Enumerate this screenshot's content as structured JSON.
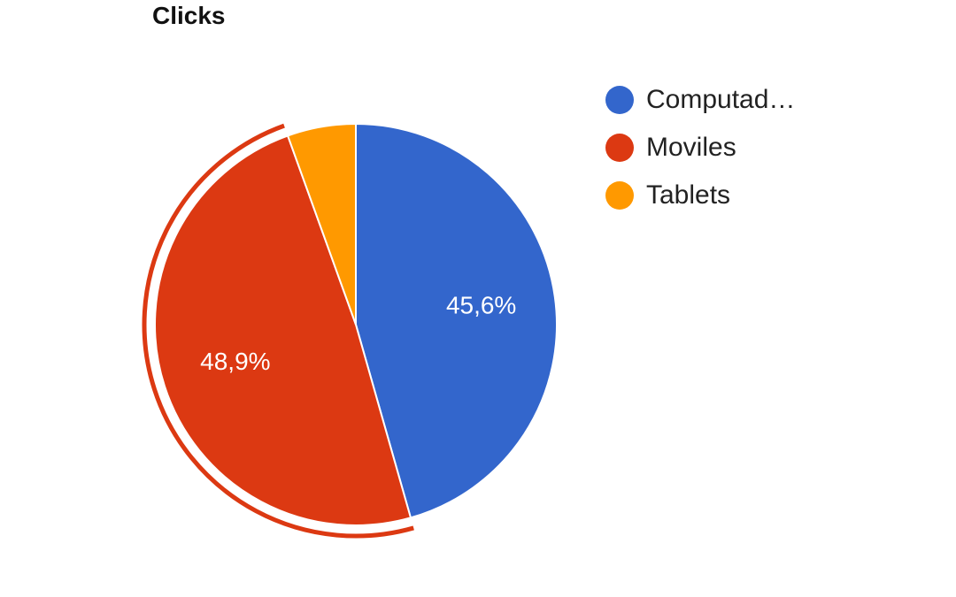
{
  "chart_data": {
    "type": "pie",
    "title": "Clicks",
    "slices": [
      {
        "label": "Computad…",
        "value": 45.6,
        "value_label": "45,6%",
        "color": "#3366cc"
      },
      {
        "label": "Moviles",
        "value": 48.9,
        "value_label": "48,9%",
        "color": "#dc3912"
      },
      {
        "label": "Tablets",
        "value": 5.5,
        "value_label": "",
        "color": "#ff9900"
      }
    ],
    "highlighted_slice": "Moviles",
    "legend_position": "right"
  }
}
